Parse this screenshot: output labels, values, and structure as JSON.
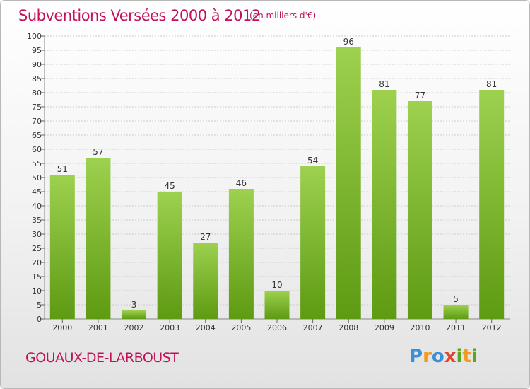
{
  "header": {
    "title": "Subventions Versées 2000 à 2012",
    "unit_note": "(en milliers d'€)"
  },
  "footer": {
    "commune": "GOUAUX-DE-LARBOUST",
    "brand_letters": [
      "P",
      "r",
      "o",
      "x",
      "i",
      "t",
      "i"
    ]
  },
  "colors": {
    "bar_top": "#9dd14f",
    "bar_bottom": "#5e9a12",
    "title": "#c0135a",
    "grid": "#cccccc"
  },
  "chart_data": {
    "type": "bar",
    "categories": [
      "2000",
      "2001",
      "2002",
      "2003",
      "2004",
      "2005",
      "2006",
      "2007",
      "2008",
      "2009",
      "2010",
      "2011",
      "2012"
    ],
    "values": [
      51,
      57,
      3,
      45,
      27,
      46,
      10,
      54,
      96,
      81,
      77,
      5,
      81
    ],
    "data_labels": [
      "51",
      "57",
      "3",
      "45",
      "27",
      "46",
      "10",
      "54",
      "96",
      "81",
      "77",
      "5",
      "81"
    ],
    "ylim": [
      0,
      100
    ],
    "ytick_step": 5,
    "yticks": [
      "0",
      "5",
      "10",
      "15",
      "20",
      "25",
      "30",
      "35",
      "40",
      "45",
      "50",
      "55",
      "60",
      "65",
      "70",
      "75",
      "80",
      "85",
      "90",
      "95",
      "100"
    ],
    "grid": true,
    "legend": "none"
  }
}
